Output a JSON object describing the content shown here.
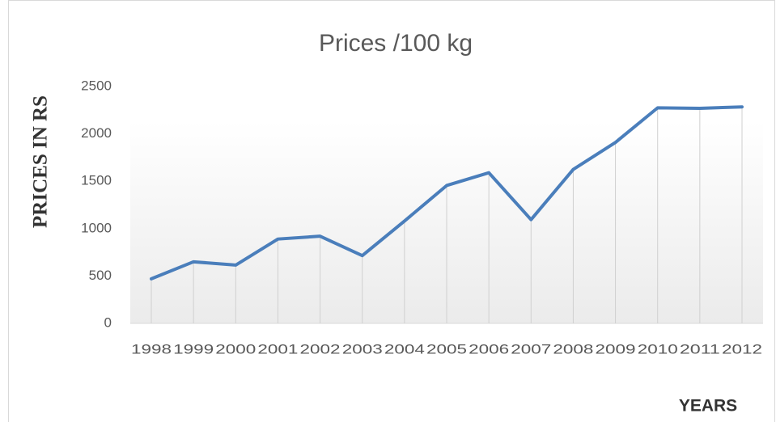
{
  "chart_data": {
    "type": "line",
    "title": "Prices /100 kg",
    "y_label": "PRICES IN RS",
    "x_label": "YEARS",
    "categories": [
      "1998",
      "1999",
      "2000",
      "2001",
      "2002",
      "2003",
      "2004",
      "2005",
      "2006",
      "2007",
      "2008",
      "2009",
      "2010",
      "2011",
      "2012"
    ],
    "series": [
      {
        "name": "Prices",
        "color": "#4a7ebb",
        "values": [
          470,
          650,
          615,
          890,
          920,
          715,
          1080,
          1455,
          1590,
          1095,
          1625,
          1910,
          2275,
          2270,
          2285
        ]
      }
    ],
    "ylim": [
      0,
      2500
    ],
    "yticks": [
      0,
      500,
      1000,
      1500,
      2000,
      2500
    ],
    "drop_lines": true
  }
}
